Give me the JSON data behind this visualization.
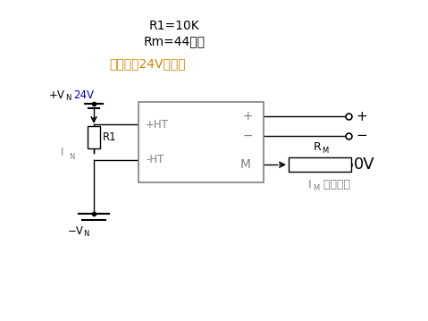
{
  "title_line1": "R1=10K",
  "title_line2": "Rm=44欧姆",
  "subtitle": "电源仍用24V电源。",
  "bg_color": "#ffffff",
  "black": "#000000",
  "gray": "#808080",
  "orange": "#cc8800",
  "blue": "#0000cc"
}
